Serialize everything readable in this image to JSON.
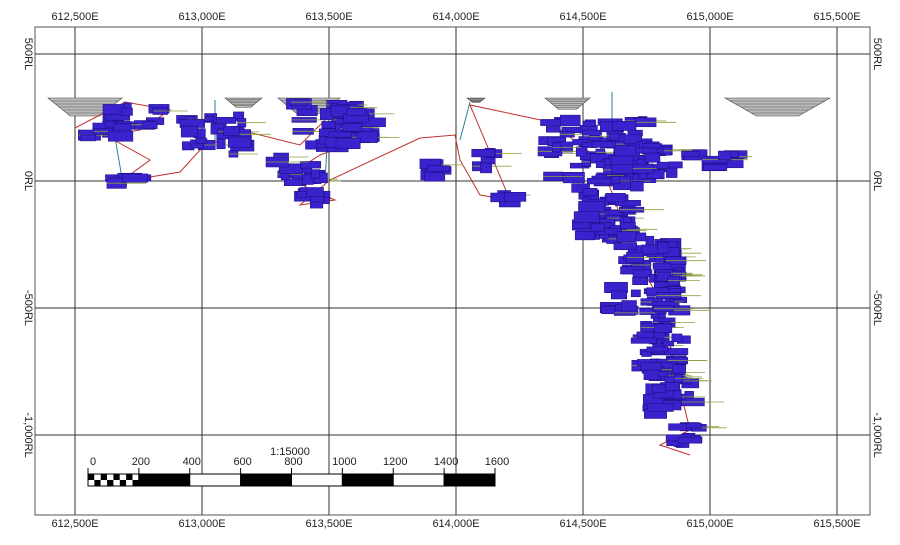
{
  "grid": {
    "eastings": [
      "612,500E",
      "613,000E",
      "613,500E",
      "614,000E",
      "614,500E",
      "615,000E",
      "615,500E"
    ],
    "rls": [
      "500RL",
      "0RL",
      "-500RL",
      "-1,000RL"
    ]
  },
  "scale_bar": {
    "ratio": "1:15000",
    "labels": [
      "0",
      "200",
      "400",
      "600",
      "800",
      "1000",
      "1200",
      "1400",
      "1600"
    ]
  }
}
